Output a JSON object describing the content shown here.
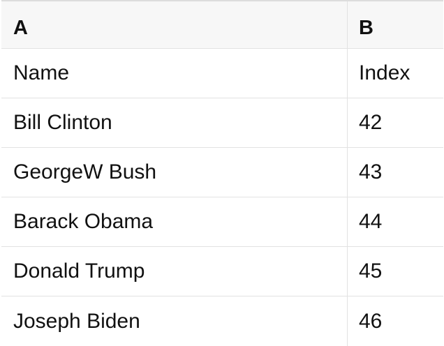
{
  "spreadsheet": {
    "column_headers": [
      "A",
      "B"
    ],
    "rows": [
      [
        "Name",
        "Index"
      ],
      [
        "Bill Clinton",
        "42"
      ],
      [
        "GeorgeW Bush",
        "43"
      ],
      [
        "Barack Obama",
        "44"
      ],
      [
        "Donald Trump",
        "45"
      ],
      [
        "Joseph Biden",
        "46"
      ]
    ],
    "colors": {
      "header_bg": "#f7f7f7",
      "grid_border": "#e2e2e2",
      "top_border": "#dcdcdc",
      "text": "#111111",
      "row_bg": "#ffffff"
    }
  }
}
